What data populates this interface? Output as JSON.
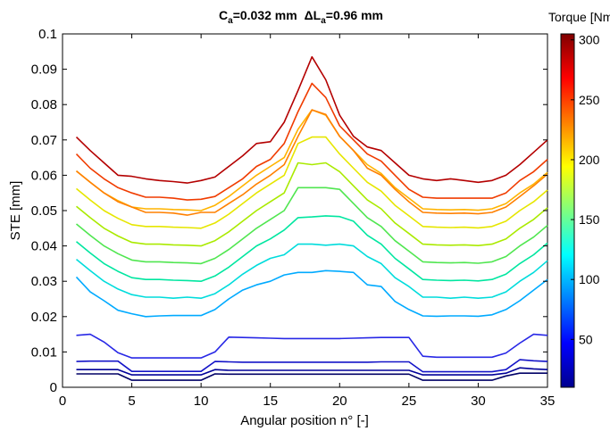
{
  "chart_data": {
    "type": "line",
    "title": "C_a=0.032 mm  ΔL_a=0.96 mm",
    "title_parts": {
      "c": "C",
      "c_sub": "a",
      "c_val": "=0.032 mm ",
      "delta": "ΔL",
      "delta_sub": "a",
      "delta_val": "=0.96 mm"
    },
    "xlabel": "Angular position n° [-]",
    "ylabel": "STE [mm]",
    "xlim": [
      0,
      35
    ],
    "ylim": [
      0,
      0.1
    ],
    "xticks": [
      0,
      5,
      10,
      15,
      20,
      25,
      30,
      35
    ],
    "yticks": [
      0,
      0.01,
      0.02,
      0.03,
      0.04,
      0.05,
      0.06,
      0.07,
      0.08,
      0.09,
      0.1
    ],
    "grid": false,
    "x": [
      1,
      2,
      3,
      4,
      5,
      6,
      7,
      8,
      9,
      10,
      11,
      12,
      13,
      14,
      15,
      16,
      17,
      18,
      19,
      20,
      21,
      22,
      23,
      24,
      25,
      26,
      27,
      28,
      29,
      30,
      31,
      32,
      33,
      34,
      35
    ],
    "colorbar": {
      "label": "Torque [Nm]",
      "range": [
        10,
        305
      ],
      "ticks": [
        50,
        100,
        150,
        200,
        250,
        300
      ],
      "colormap": "jet"
    },
    "series": [
      {
        "torque": 10,
        "color": "#000066",
        "values": [
          0.0038,
          0.0038,
          0.0038,
          0.0038,
          0.002,
          0.002,
          0.002,
          0.002,
          0.002,
          0.002,
          0.0038,
          0.0037,
          0.0037,
          0.0037,
          0.0037,
          0.0037,
          0.0037,
          0.0037,
          0.0037,
          0.0037,
          0.0037,
          0.0037,
          0.0037,
          0.0037,
          0.0037,
          0.002,
          0.002,
          0.002,
          0.002,
          0.002,
          0.002,
          0.0032,
          0.004,
          0.004,
          0.004
        ]
      },
      {
        "torque": 20,
        "color": "#000099",
        "values": [
          0.005,
          0.005,
          0.005,
          0.005,
          0.0035,
          0.0035,
          0.0035,
          0.0035,
          0.0035,
          0.0035,
          0.005,
          0.0048,
          0.0048,
          0.0048,
          0.0048,
          0.0048,
          0.0048,
          0.0048,
          0.0048,
          0.0048,
          0.0048,
          0.0048,
          0.0048,
          0.0048,
          0.0048,
          0.0035,
          0.0035,
          0.0035,
          0.0035,
          0.0035,
          0.0035,
          0.004,
          0.0055,
          0.0052,
          0.005
        ]
      },
      {
        "torque": 30,
        "color": "#1414c8",
        "values": [
          0.0073,
          0.0074,
          0.0074,
          0.0074,
          0.0045,
          0.0045,
          0.0045,
          0.0045,
          0.0045,
          0.0045,
          0.0073,
          0.0072,
          0.0071,
          0.0071,
          0.0071,
          0.0071,
          0.0071,
          0.0071,
          0.0071,
          0.0071,
          0.0071,
          0.0071,
          0.0072,
          0.0072,
          0.0072,
          0.0044,
          0.0044,
          0.0044,
          0.0044,
          0.0044,
          0.0044,
          0.005,
          0.0078,
          0.0075,
          0.0073
        ]
      },
      {
        "torque": 40,
        "color": "#2828e6",
        "values": [
          0.0147,
          0.015,
          0.0128,
          0.0098,
          0.0083,
          0.0083,
          0.0083,
          0.0083,
          0.0083,
          0.0083,
          0.01,
          0.0142,
          0.0141,
          0.014,
          0.0139,
          0.0138,
          0.0138,
          0.0138,
          0.0138,
          0.0138,
          0.0139,
          0.014,
          0.0141,
          0.0141,
          0.0141,
          0.0088,
          0.0085,
          0.0085,
          0.0085,
          0.0085,
          0.0085,
          0.0097,
          0.0125,
          0.015,
          0.0147
        ]
      },
      {
        "torque": 100,
        "color": "#00aaff",
        "values": [
          0.0312,
          0.027,
          0.0245,
          0.0218,
          0.0208,
          0.02,
          0.0202,
          0.0203,
          0.0203,
          0.0203,
          0.022,
          0.025,
          0.0275,
          0.029,
          0.03,
          0.0318,
          0.0325,
          0.0325,
          0.033,
          0.0328,
          0.0325,
          0.029,
          0.0285,
          0.0243,
          0.022,
          0.0202,
          0.0201,
          0.0202,
          0.0202,
          0.0201,
          0.0205,
          0.022,
          0.0245,
          0.0275,
          0.0305
        ]
      },
      {
        "torque": 120,
        "color": "#00dcdc",
        "values": [
          0.0362,
          0.033,
          0.03,
          0.0278,
          0.0262,
          0.0255,
          0.0255,
          0.0252,
          0.0255,
          0.0252,
          0.0265,
          0.029,
          0.032,
          0.0345,
          0.0365,
          0.0375,
          0.0405,
          0.0405,
          0.0402,
          0.0405,
          0.04,
          0.037,
          0.035,
          0.031,
          0.0285,
          0.0255,
          0.0255,
          0.0252,
          0.0255,
          0.0252,
          0.0255,
          0.027,
          0.03,
          0.0325,
          0.0358
        ]
      },
      {
        "torque": 140,
        "color": "#00e6a0",
        "values": [
          0.0412,
          0.038,
          0.035,
          0.0328,
          0.031,
          0.0305,
          0.0305,
          0.0303,
          0.0302,
          0.03,
          0.0315,
          0.034,
          0.037,
          0.04,
          0.042,
          0.0445,
          0.048,
          0.0482,
          0.0485,
          0.0483,
          0.047,
          0.043,
          0.0405,
          0.0365,
          0.0335,
          0.0305,
          0.0303,
          0.0302,
          0.0303,
          0.0301,
          0.0305,
          0.032,
          0.035,
          0.0375,
          0.0408
        ]
      },
      {
        "torque": 160,
        "color": "#50e650",
        "values": [
          0.0462,
          0.043,
          0.04,
          0.0378,
          0.036,
          0.0355,
          0.0355,
          0.0353,
          0.0352,
          0.035,
          0.0365,
          0.039,
          0.042,
          0.045,
          0.0475,
          0.05,
          0.0565,
          0.0565,
          0.0565,
          0.056,
          0.052,
          0.048,
          0.0455,
          0.0415,
          0.0385,
          0.0355,
          0.0353,
          0.0352,
          0.0353,
          0.0351,
          0.0355,
          0.037,
          0.04,
          0.0425,
          0.0458
        ]
      },
      {
        "torque": 180,
        "color": "#aaea00",
        "values": [
          0.0512,
          0.048,
          0.045,
          0.0428,
          0.041,
          0.0405,
          0.0405,
          0.0403,
          0.0402,
          0.04,
          0.0415,
          0.044,
          0.047,
          0.05,
          0.0525,
          0.055,
          0.0635,
          0.063,
          0.0635,
          0.061,
          0.057,
          0.053,
          0.0505,
          0.0465,
          0.0435,
          0.0405,
          0.0403,
          0.0402,
          0.0403,
          0.0401,
          0.0405,
          0.042,
          0.045,
          0.0475,
          0.0508
        ]
      },
      {
        "torque": 200,
        "color": "#e6e600",
        "values": [
          0.0562,
          0.053,
          0.05,
          0.0478,
          0.046,
          0.0455,
          0.0455,
          0.0453,
          0.0452,
          0.045,
          0.0465,
          0.049,
          0.052,
          0.055,
          0.0575,
          0.06,
          0.069,
          0.0708,
          0.0708,
          0.066,
          0.062,
          0.058,
          0.0555,
          0.0515,
          0.0485,
          0.0455,
          0.0453,
          0.0452,
          0.0453,
          0.0451,
          0.0455,
          0.047,
          0.05,
          0.0525,
          0.0558
        ]
      },
      {
        "torque": 220,
        "color": "#ffb400",
        "values": [
          0.0612,
          0.058,
          0.055,
          0.0528,
          0.051,
          0.0505,
          0.0505,
          0.0503,
          0.0502,
          0.05,
          0.0515,
          0.054,
          0.057,
          0.06,
          0.0625,
          0.065,
          0.073,
          0.0785,
          0.077,
          0.071,
          0.067,
          0.063,
          0.0605,
          0.0565,
          0.0535,
          0.0505,
          0.0503,
          0.0502,
          0.0503,
          0.0501,
          0.0505,
          0.052,
          0.055,
          0.0575,
          0.0608
        ]
      },
      {
        "torque": 240,
        "color": "#ff8000",
        "values": [
          0.0612,
          0.058,
          0.055,
          0.0525,
          0.051,
          0.0495,
          0.0495,
          0.0493,
          0.0487,
          0.0495,
          0.0495,
          0.052,
          0.0545,
          0.0575,
          0.06,
          0.063,
          0.071,
          0.0785,
          0.0772,
          0.071,
          0.067,
          0.062,
          0.06,
          0.056,
          0.0525,
          0.0495,
          0.0493,
          0.0492,
          0.0493,
          0.0491,
          0.0495,
          0.051,
          0.054,
          0.057,
          0.0603
        ]
      },
      {
        "torque": 260,
        "color": "#f03c00",
        "values": [
          0.066,
          0.062,
          0.059,
          0.0565,
          0.055,
          0.0538,
          0.0538,
          0.0535,
          0.053,
          0.0532,
          0.054,
          0.0565,
          0.059,
          0.0625,
          0.0645,
          0.069,
          0.078,
          0.086,
          0.082,
          0.074,
          0.07,
          0.066,
          0.064,
          0.06,
          0.056,
          0.0538,
          0.0535,
          0.0535,
          0.0535,
          0.0535,
          0.0535,
          0.055,
          0.0585,
          0.061,
          0.0645
        ]
      },
      {
        "torque": 300,
        "color": "#b40000",
        "values": [
          0.0708,
          0.067,
          0.0635,
          0.06,
          0.0597,
          0.059,
          0.0585,
          0.0582,
          0.0578,
          0.0585,
          0.0595,
          0.0625,
          0.0655,
          0.069,
          0.0695,
          0.075,
          0.084,
          0.0935,
          0.087,
          0.077,
          0.071,
          0.068,
          0.067,
          0.0635,
          0.06,
          0.059,
          0.0585,
          0.059,
          0.0585,
          0.058,
          0.0585,
          0.06,
          0.063,
          0.0665,
          0.07
        ]
      }
    ]
  }
}
